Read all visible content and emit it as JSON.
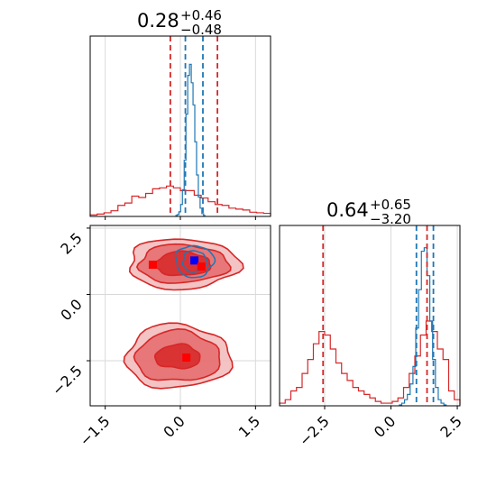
{
  "chart_data": {
    "type": "corner",
    "colors": {
      "red": "#d62728",
      "blue": "#1f77b4",
      "marker_blue": "#0000ff",
      "marker_red": "#ff0000",
      "grid": "#d9d9d9"
    },
    "params": [
      {
        "title_value": "0.28",
        "title_plus": "+0.46",
        "title_minus": "−0.48",
        "range": [
          -1.8,
          1.8
        ]
      },
      {
        "title_value": "0.64",
        "title_plus": "+0.65",
        "title_minus": "−3.20",
        "range": [
          -4.2,
          2.6
        ]
      }
    ],
    "x_ticks_param0": [
      {
        "value": -1.5,
        "label": "−1.5"
      },
      {
        "value": 0.0,
        "label": "0.0"
      },
      {
        "value": 1.5,
        "label": "1.5"
      }
    ],
    "y_ticks_param1": [
      {
        "value": 2.5,
        "label": "2.5"
      },
      {
        "value": 0.0,
        "label": "0.0"
      },
      {
        "value": -2.5,
        "label": "−2.5"
      }
    ],
    "x_ticks_param1": [
      {
        "value": -2.5,
        "label": "−2.5"
      },
      {
        "value": 0.0,
        "label": "0.0"
      },
      {
        "value": 2.5,
        "label": "2.5"
      }
    ],
    "quantile_lines": {
      "red_param0": [
        -0.2,
        0.74
      ],
      "blue_param0": [
        0.1,
        0.45
      ],
      "red_param1": [
        -2.56,
        1.36
      ],
      "blue_param1": [
        0.96,
        1.6
      ]
    },
    "markers": [
      {
        "series": "blue",
        "x": 0.28,
        "y": 1.28
      },
      {
        "series": "red",
        "x": -0.55,
        "y": 1.12
      },
      {
        "series": "red",
        "x": 0.42,
        "y": 1.05
      },
      {
        "series": "red",
        "x": 0.12,
        "y": -2.38
      }
    ],
    "hist_param0_red": {
      "x0": -1.8,
      "x1": 1.8,
      "values": [
        0.3,
        0.8,
        1.5,
        2.6,
        5.5,
        6.8,
        10.5,
        9.8,
        12,
        14.5,
        15,
        16,
        15,
        13.5,
        13.5,
        11,
        9.5,
        7.5,
        6,
        5.5,
        4,
        3.5,
        3,
        1.8,
        1.5,
        1.2
      ]
    },
    "hist_param0_blue": {
      "x0": -0.1,
      "x1": 0.5,
      "values": [
        0,
        0.5,
        2,
        6,
        14,
        30,
        55,
        76,
        82,
        72,
        60,
        40,
        22,
        10,
        4,
        1,
        0
      ]
    },
    "hist_param1_red": {
      "x0": -4.2,
      "x1": 2.6,
      "values": [
        1,
        3,
        8,
        10,
        18,
        26,
        35,
        42,
        40,
        32,
        24,
        18,
        14,
        10,
        8,
        6,
        4,
        2,
        1,
        1,
        2,
        4,
        10,
        18,
        28,
        40,
        48,
        42,
        32,
        26,
        8,
        3
      ]
    },
    "hist_param1_blue": {
      "x0": 0.3,
      "x1": 2.1,
      "values": [
        0,
        1,
        3,
        6,
        12,
        22,
        44,
        66,
        88,
        90,
        74,
        48,
        26,
        10,
        3,
        1,
        0
      ]
    },
    "contours_2d": {
      "upper_mode": {
        "cx": 0.05,
        "cy": 1.15,
        "levels": [
          {
            "rx": 1.1,
            "ry": 0.95
          },
          {
            "rx": 0.9,
            "ry": 0.72
          },
          {
            "rx": 0.55,
            "ry": 0.45
          }
        ]
      },
      "lower_mode": {
        "cx": -0.05,
        "cy": -2.35,
        "levels": [
          {
            "rx": 1.05,
            "ry": 1.2
          },
          {
            "rx": 0.85,
            "ry": 0.95
          },
          {
            "rx": 0.45,
            "ry": 0.45
          }
        ]
      },
      "blue_mode": {
        "cx": 0.28,
        "cy": 1.25,
        "levels": [
          {
            "rx": 0.38,
            "ry": 0.6
          },
          {
            "rx": 0.24,
            "ry": 0.4
          }
        ]
      }
    }
  }
}
